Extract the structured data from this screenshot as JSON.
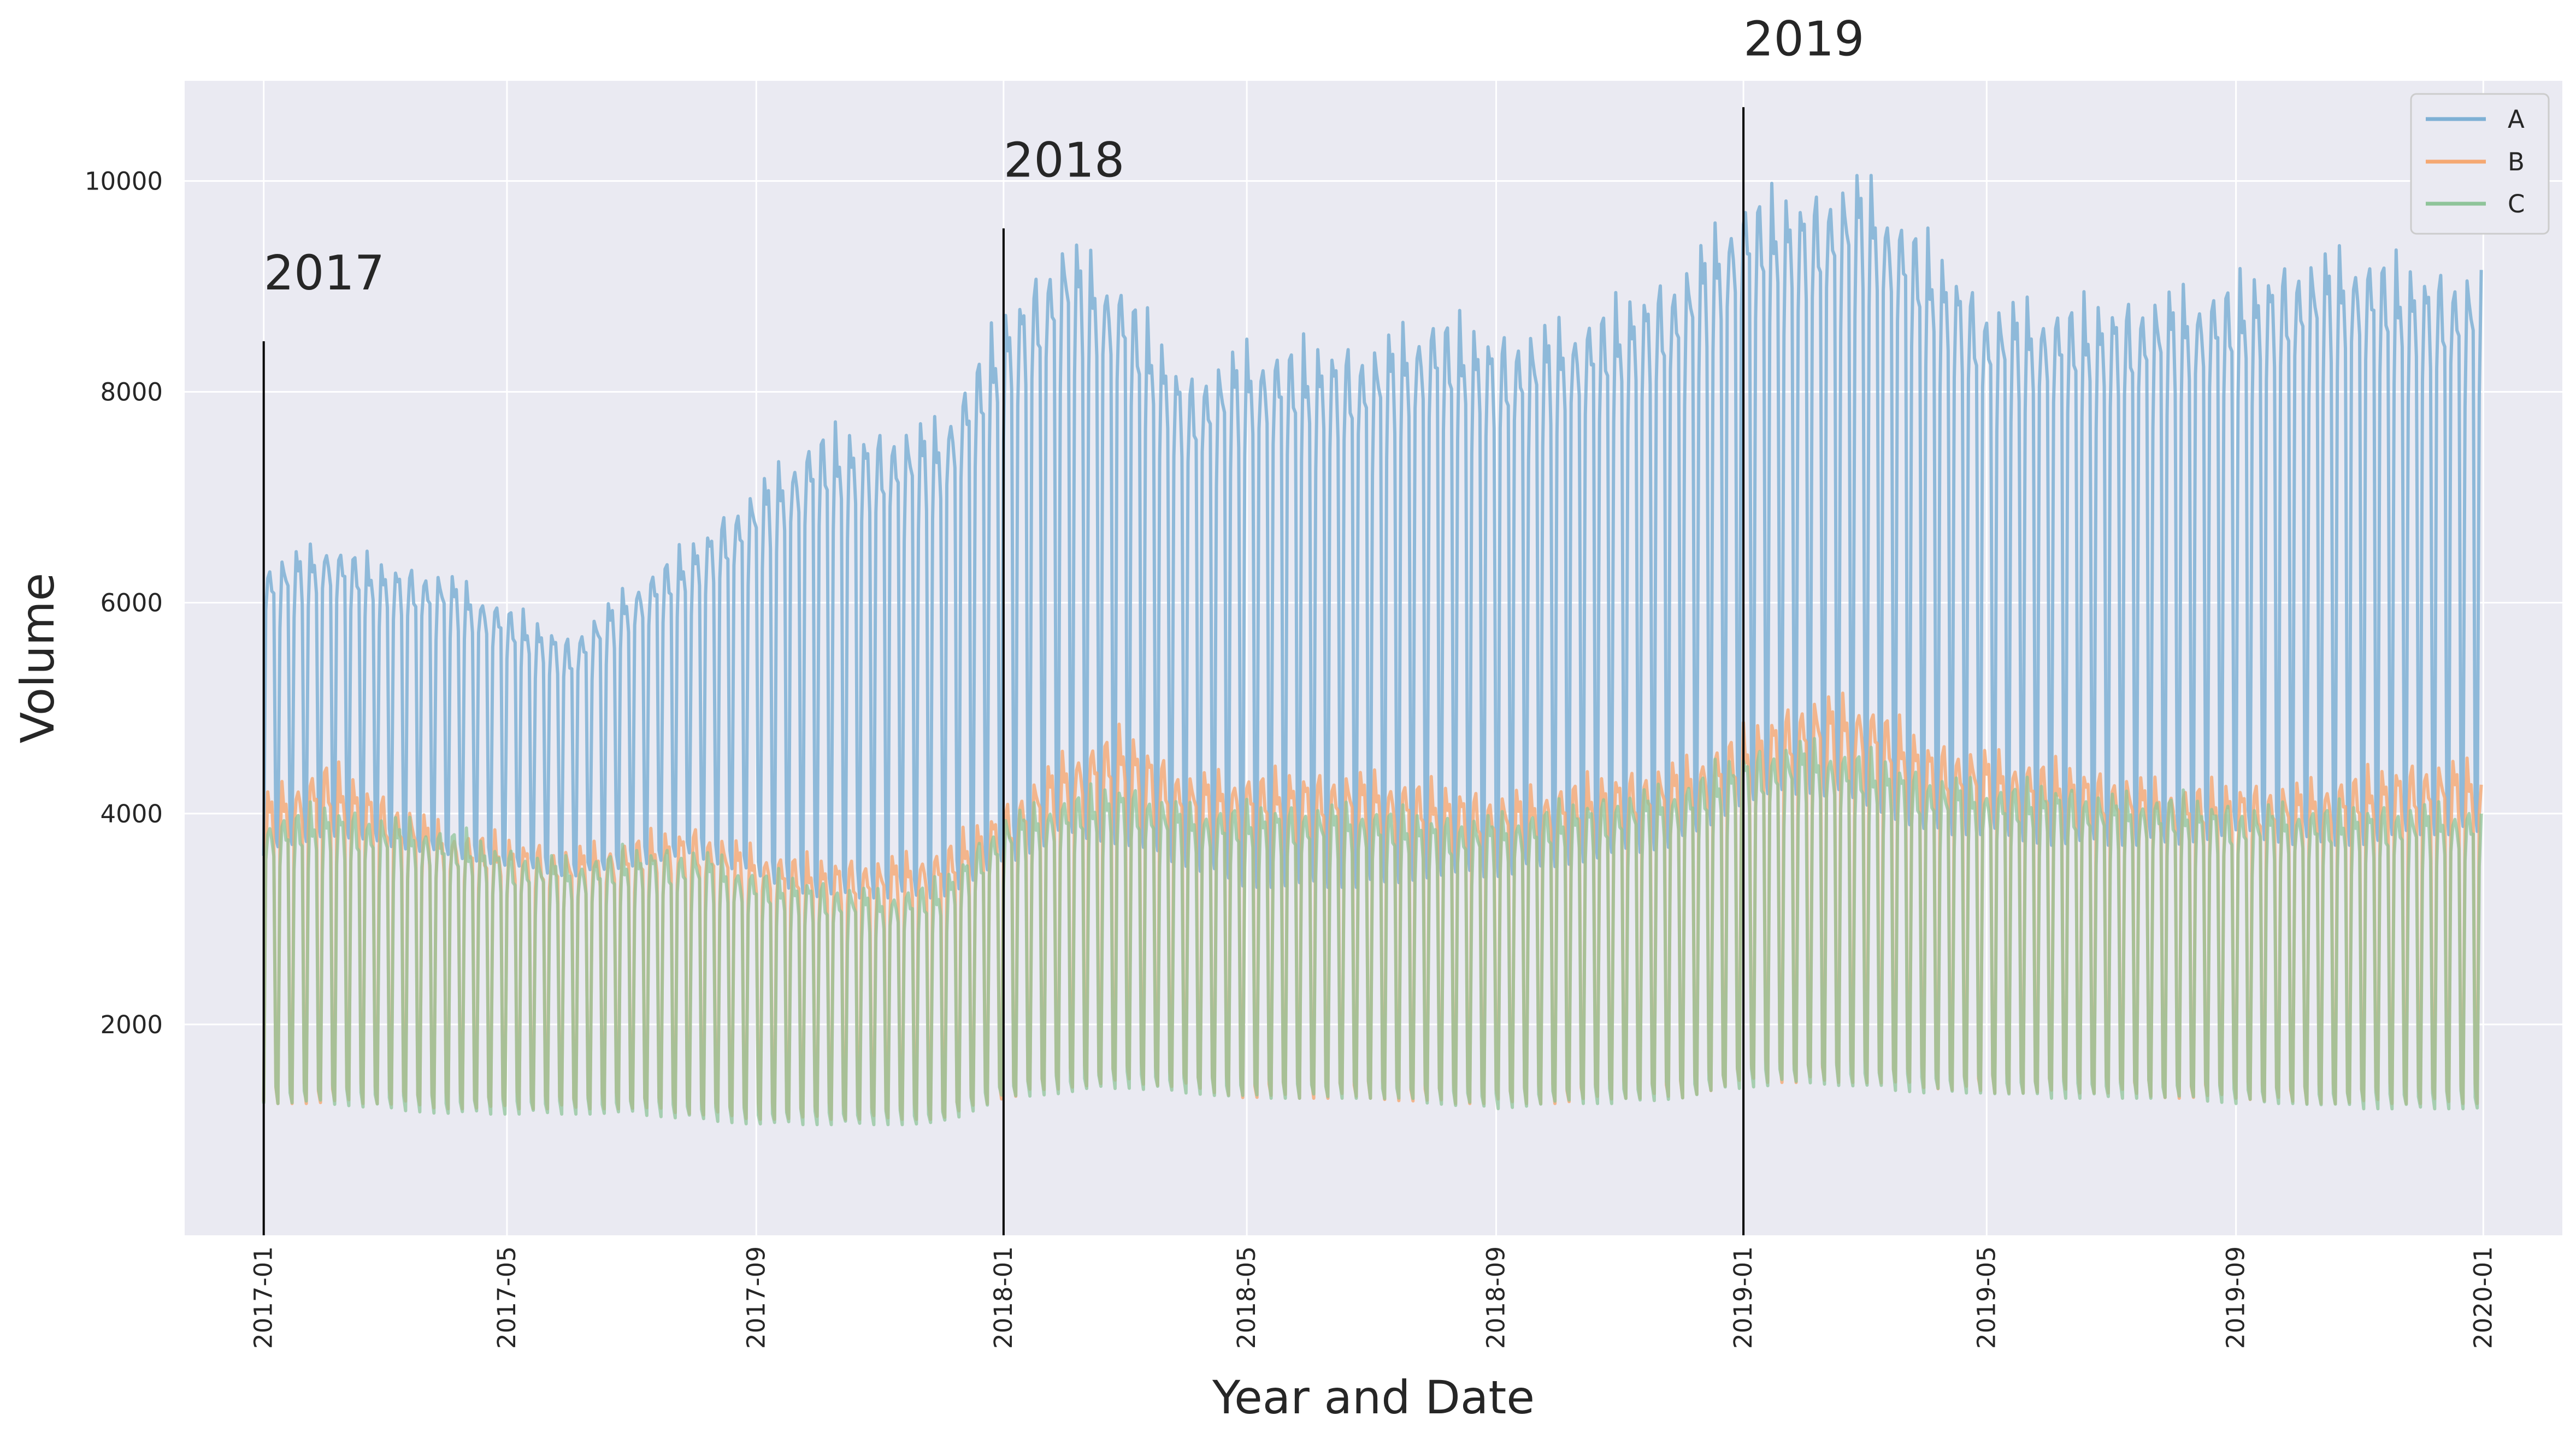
{
  "chart_data": {
    "type": "line",
    "title": "",
    "xlabel": "Year and Date",
    "ylabel": "Volume",
    "xlim": [
      "2016-11-23",
      "2020-02-09"
    ],
    "ylim": [
      0,
      10950
    ],
    "y_ticks": [
      2000,
      4000,
      6000,
      8000,
      10000
    ],
    "x_ticks": [
      "2017-01",
      "2017-05",
      "2017-09",
      "2018-01",
      "2018-05",
      "2018-09",
      "2019-01",
      "2019-05",
      "2019-09",
      "2020-01"
    ],
    "grid": true,
    "legend": {
      "position": "top-right",
      "entries": [
        "A",
        "B",
        "C"
      ]
    },
    "colors": {
      "A": "#7eb0d5",
      "B": "#f5a872",
      "C": "#8fc49a",
      "background": "#eaeaf2",
      "grid": "#ffffff",
      "vlines": "#000000"
    },
    "annotations": [
      {
        "text": "2017",
        "x": "2017-01-01",
        "vline_top": 8480
      },
      {
        "text": "2018",
        "x": "2018-01-01",
        "vline_top": 9550
      },
      {
        "text": "2019",
        "x": "2019-01-01",
        "vline_top": 10700
      }
    ],
    "sampling": "daily 2017-01-01 to 2019-12-31; weekly cycle of weekday highs and weekend lows",
    "series": [
      {
        "name": "A",
        "weekday_high_monthly": [
          6300,
          6500,
          6300,
          6200,
          5900,
          5600,
          6100,
          6500,
          7000,
          7500,
          7500,
          7600,
          8600,
          9300,
          8900,
          8000,
          8300,
          8300,
          8300,
          8600,
          8400,
          8500,
          8700,
          9000,
          9700,
          9700,
          9900,
          9300,
          8700,
          8700,
          8700,
          8800,
          8900,
          9100,
          9200,
          9000
        ],
        "weekend_low_monthly": [
          3600,
          3800,
          3700,
          3600,
          3500,
          3400,
          3500,
          3600,
          3400,
          3200,
          3200,
          3200,
          3500,
          3800,
          3700,
          3500,
          3300,
          3300,
          3300,
          3400,
          3400,
          3500,
          3600,
          3700,
          4100,
          4200,
          4100,
          3800,
          3800,
          3700,
          3700,
          3700,
          3800,
          3700,
          3700,
          3800
        ]
      },
      {
        "name": "B",
        "weekday_high_monthly": [
          4100,
          4400,
          4100,
          3800,
          3700,
          3600,
          3700,
          3800,
          3600,
          3500,
          3500,
          3600,
          4000,
          4500,
          4700,
          4300,
          4300,
          4300,
          4300,
          4200,
          4100,
          4200,
          4300,
          4400,
          4700,
          5000,
          5000,
          4600,
          4500,
          4400,
          4300,
          4200,
          4200,
          4200,
          4300,
          4400
        ],
        "weekend_low_monthly": [
          1250,
          1250,
          1250,
          1200,
          1200,
          1200,
          1200,
          1150,
          1100,
          1100,
          1100,
          1100,
          1300,
          1400,
          1450,
          1400,
          1300,
          1300,
          1300,
          1250,
          1250,
          1250,
          1300,
          1300,
          1450,
          1450,
          1450,
          1400,
          1350,
          1350,
          1350,
          1300,
          1300,
          1250,
          1250,
          1250
        ]
      },
      {
        "name": "C",
        "weekday_high_monthly": [
          3900,
          4000,
          3900,
          3800,
          3600,
          3500,
          3600,
          3600,
          3400,
          3300,
          3200,
          3300,
          3900,
          4100,
          4200,
          4000,
          4000,
          4000,
          4000,
          3900,
          3900,
          4000,
          4100,
          4200,
          4500,
          4600,
          4500,
          4300,
          4200,
          4200,
          4100,
          4100,
          4000,
          4000,
          4000,
          4000
        ],
        "weekend_low_monthly": [
          1250,
          1250,
          1200,
          1150,
          1150,
          1150,
          1150,
          1100,
          1050,
          1050,
          1050,
          1050,
          1300,
          1350,
          1400,
          1350,
          1300,
          1300,
          1300,
          1250,
          1200,
          1250,
          1250,
          1300,
          1400,
          1450,
          1400,
          1350,
          1350,
          1300,
          1300,
          1300,
          1250,
          1250,
          1200,
          1200
        ]
      }
    ]
  }
}
